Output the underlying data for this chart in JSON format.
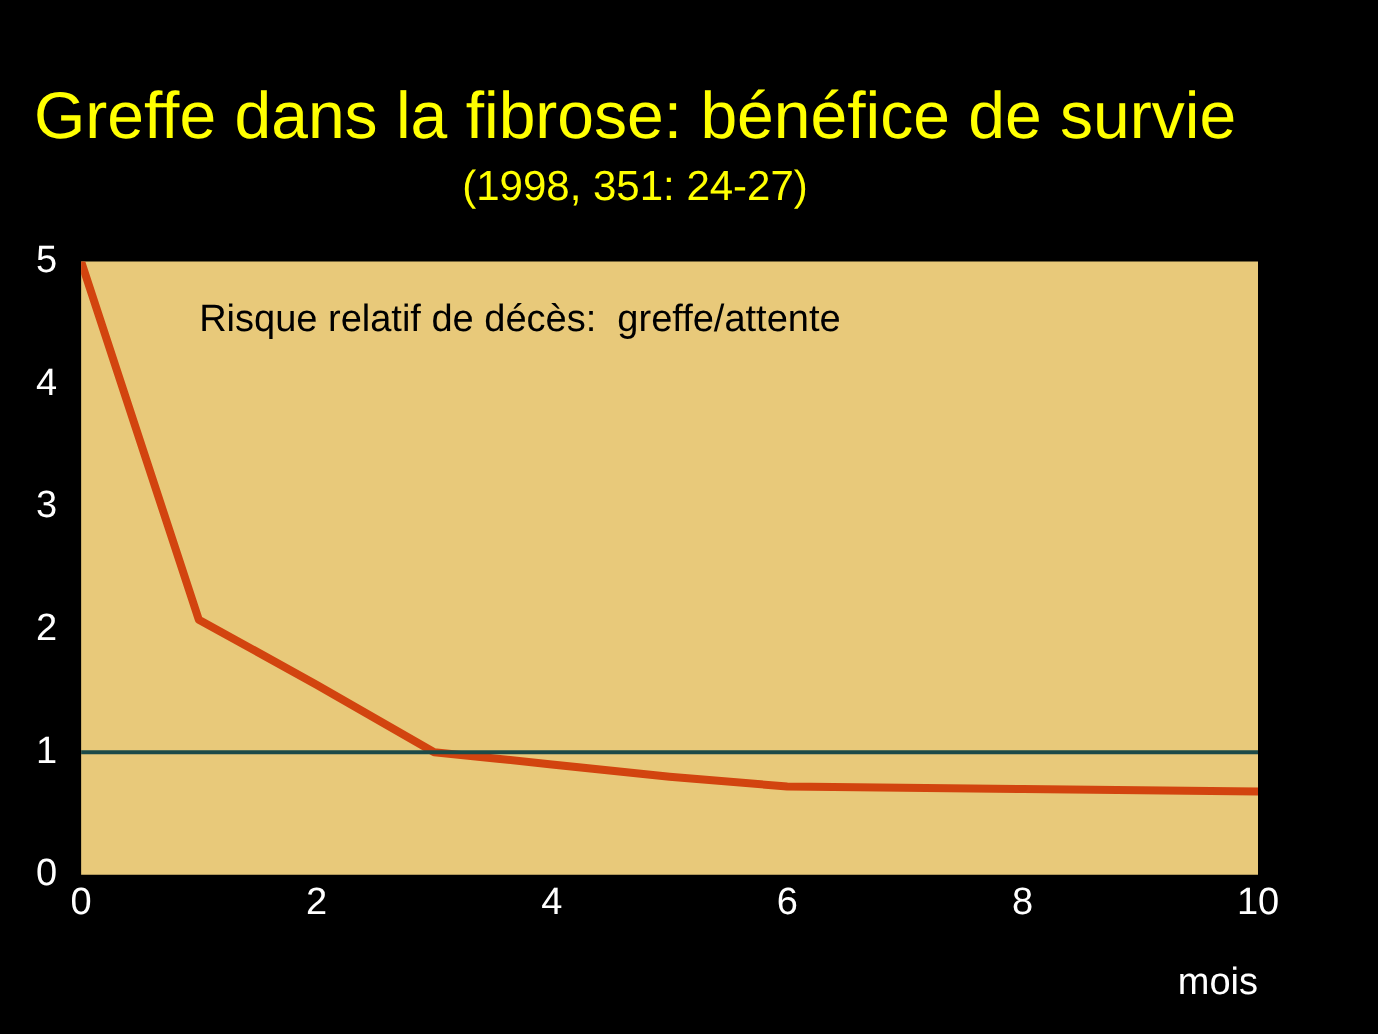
{
  "chart_data": {
    "type": "line",
    "title": "Greffe dans la fibrose: bénéfice de survie",
    "subtitle": "(1998, 351: 24-27)",
    "xlabel": "mois",
    "annotations": [
      "Risque relatif de décès:  greffe/attente"
    ],
    "x": [
      0,
      1,
      2,
      3,
      4,
      5,
      6,
      8,
      10
    ],
    "series": [
      {
        "color": "#d2440f",
        "values": [
          5,
          2.08,
          1.55,
          1.0,
          0.9,
          0.8,
          0.72,
          0.7,
          0.68
        ]
      }
    ],
    "xlim": [
      0,
      10
    ],
    "xticks": [
      0,
      2,
      4,
      6,
      8,
      10
    ],
    "ylim": [
      0,
      5
    ],
    "yticks": [
      0,
      1,
      2,
      3,
      4,
      5
    ],
    "ref_lines": [
      {
        "axis": "y",
        "value": 1,
        "color": "#1c4a48"
      }
    ],
    "grid": false,
    "legend": false,
    "marker": "none",
    "line_style": "solid"
  }
}
